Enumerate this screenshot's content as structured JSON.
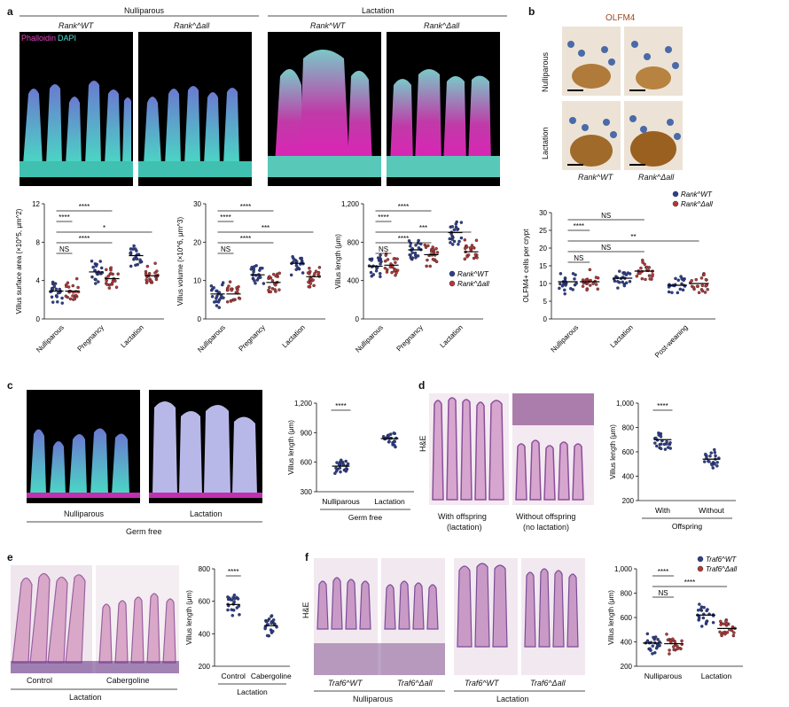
{
  "panels": {
    "a": "a",
    "b": "b",
    "c": "c",
    "d": "d",
    "e": "e",
    "f": "f"
  },
  "colors": {
    "wt": "#2f3f8f",
    "delta": "#b23a3a",
    "cyan": "#49d8c8",
    "magenta": "#d62aa8",
    "he_pink": "#d8a6c8",
    "he_purple": "#6a3c8a"
  },
  "a": {
    "group_nulliparous": "Nulliparous",
    "group_lactation": "Lactation",
    "geno_wt": "Rank^WT",
    "geno_delta": "Rank^Δall",
    "stain_phalloidin": "Phalloidin",
    "stain_dapi": "DAPI"
  },
  "b": {
    "title": "OLFM4",
    "row_nulliparous": "Nulliparous",
    "row_lactation": "Lactation",
    "geno_wt": "Rank^WT",
    "geno_delta": "Rank^Δall"
  },
  "c": {
    "label_nulliparous": "Nulliparous",
    "label_lactation": "Lactation",
    "label_germfree": "Germ free"
  },
  "d": {
    "he": "H&E",
    "with_offspring": "With offspring",
    "with_offspring_sub": "(lactation)",
    "without_offspring": "Without offspring",
    "without_offspring_sub": "(no lactation)"
  },
  "e": {
    "control": "Control",
    "cabergoline": "Cabergoline",
    "lactation": "Lactation"
  },
  "f": {
    "he": "H&E",
    "traf_wt": "Traf6^WT",
    "traf_delta": "Traf6^Δall",
    "nulliparous": "Nulliparous",
    "lactation": "Lactation"
  },
  "chart_data": [
    {
      "id": "a1",
      "type": "scatter",
      "ylabel": "Villus surface area (×10^5, μm^2)",
      "ylim": [
        0,
        12
      ],
      "yticks": [
        "0",
        "4",
        "8",
        "12"
      ],
      "categories": [
        "Nulliparous",
        "Pregnancy",
        "Lactation"
      ],
      "series": [
        {
          "name": "Rank^WT",
          "values": [
            2.9,
            4.9,
            6.6
          ]
        },
        {
          "name": "Rank^Δall",
          "values": [
            2.9,
            4.2,
            4.5
          ]
        }
      ],
      "annotations": [
        "NS",
        "****",
        "*",
        "****",
        "****"
      ]
    },
    {
      "id": "a2",
      "type": "scatter",
      "ylabel": "Villus volume (×10^6, μm^3)",
      "ylim": [
        0,
        30
      ],
      "yticks": [
        "0",
        "10",
        "20",
        "30"
      ],
      "categories": [
        "Nulliparous",
        "Pregnancy",
        "Lactation"
      ],
      "series": [
        {
          "name": "Rank^WT",
          "values": [
            6.5,
            11.5,
            14.5
          ]
        },
        {
          "name": "Rank^Δall",
          "values": [
            6.5,
            9.5,
            11
          ]
        }
      ],
      "annotations": [
        "NS",
        "****",
        "***",
        "****",
        "****"
      ]
    },
    {
      "id": "a3",
      "type": "scatter",
      "ylabel": "Villus length (μm)",
      "ylim": [
        0,
        1200
      ],
      "yticks": [
        "0",
        "400",
        "800",
        "1,200"
      ],
      "categories": [
        "Nulliparous",
        "Pregnancy",
        "Lactation"
      ],
      "series": [
        {
          "name": "Rank^WT",
          "values": [
            550,
            720,
            900
          ]
        },
        {
          "name": "Rank^Δall",
          "values": [
            560,
            670,
            700
          ]
        }
      ],
      "annotations": [
        "NS",
        "****",
        "***",
        "****",
        "****"
      ],
      "legend": [
        "Rank^WT",
        "Rank^Δall"
      ]
    },
    {
      "id": "b1",
      "type": "scatter",
      "ylabel": "OLFM4+ cells per crypt",
      "ylim": [
        0,
        30
      ],
      "yticks": [
        "0",
        "5",
        "10",
        "15",
        "20",
        "25",
        "30"
      ],
      "categories": [
        "Nulliparous",
        "Lactation",
        "Post-weaning"
      ],
      "series": [
        {
          "name": "Rank^WT",
          "values": [
            10.5,
            11.5,
            9.5
          ]
        },
        {
          "name": "Rank^Δall",
          "values": [
            10.5,
            13.5,
            10
          ]
        }
      ],
      "annotations": [
        "NS",
        "NS",
        "**",
        "****",
        "NS"
      ],
      "legend": [
        "Rank^WT",
        "Rank^Δall"
      ]
    },
    {
      "id": "c1",
      "type": "scatter",
      "ylabel": "Villus length (μm)",
      "ylim": [
        300,
        1200
      ],
      "yticks": [
        "300",
        "600",
        "900",
        "1,200"
      ],
      "categories": [
        "Nulliparous",
        "Lactation"
      ],
      "series": [
        {
          "name": "Germ free",
          "values": [
            560,
            840
          ]
        }
      ],
      "annotations": [
        "****"
      ],
      "xgroup": "Germ free"
    },
    {
      "id": "d1",
      "type": "scatter",
      "ylabel": "Villus length (μm)",
      "ylim": [
        200,
        1000
      ],
      "yticks": [
        "200",
        "400",
        "600",
        "800",
        "1,000"
      ],
      "categories": [
        "With",
        "Without"
      ],
      "series": [
        {
          "name": "Offspring",
          "values": [
            700,
            540
          ]
        }
      ],
      "annotations": [
        "****"
      ],
      "xgroup": "Offspring"
    },
    {
      "id": "e1",
      "type": "scatter",
      "ylabel": "Villus length (μm)",
      "ylim": [
        200,
        800
      ],
      "yticks": [
        "200",
        "400",
        "600",
        "800"
      ],
      "categories": [
        "Control",
        "Cabergoline"
      ],
      "series": [
        {
          "name": "Lactation",
          "values": [
            580,
            450
          ]
        }
      ],
      "annotations": [
        "****"
      ],
      "xgroup": "Lactation"
    },
    {
      "id": "f1",
      "type": "scatter",
      "ylabel": "Villus length (μm)",
      "ylim": [
        200,
        1000
      ],
      "yticks": [
        "200",
        "400",
        "600",
        "800",
        "1,000"
      ],
      "categories": [
        "Nulliparous",
        "Lactation"
      ],
      "series": [
        {
          "name": "Traf6^WT",
          "values": [
            390,
            620
          ]
        },
        {
          "name": "Traf6^Δall",
          "values": [
            385,
            510
          ]
        }
      ],
      "annotations": [
        "NS",
        "****",
        "****"
      ],
      "legend": [
        "Traf6^WT",
        "Traf6^Δall"
      ]
    }
  ]
}
